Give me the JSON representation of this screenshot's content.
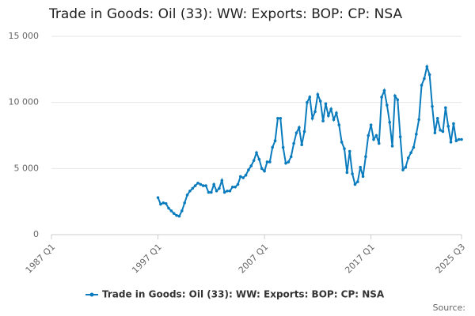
{
  "chart_data": {
    "type": "line",
    "title": "Trade in Goods: Oil (33): WW: Exports: BOP: CP: NSA",
    "source": "Source:",
    "categories": [
      "1987 Q1",
      null,
      null,
      null,
      null,
      null,
      null,
      null,
      null,
      null,
      null,
      null,
      null,
      null,
      null,
      null,
      null,
      null,
      null,
      null,
      null,
      null,
      null,
      null,
      null,
      null,
      null,
      null,
      null,
      null,
      null,
      null,
      null,
      null,
      null,
      null,
      null,
      null,
      null,
      null,
      "1997 Q1",
      null,
      null,
      null,
      null,
      null,
      null,
      null,
      null,
      null,
      null,
      null,
      null,
      null,
      null,
      null,
      null,
      null,
      null,
      null,
      null,
      null,
      null,
      null,
      null,
      null,
      null,
      null,
      null,
      null,
      null,
      null,
      null,
      null,
      null,
      null,
      null,
      null,
      null,
      null,
      "2007 Q1",
      null,
      null,
      null,
      null,
      null,
      null,
      null,
      null,
      null,
      null,
      null,
      null,
      null,
      null,
      null,
      null,
      null,
      null,
      null,
      null,
      null,
      null,
      null,
      null,
      null,
      null,
      null,
      null,
      null,
      null,
      null,
      null,
      null,
      null,
      null,
      null,
      null,
      null,
      null,
      "2017 Q1",
      null,
      null,
      null,
      null,
      null,
      null,
      null,
      null,
      null,
      null,
      null,
      null,
      null,
      null,
      null,
      null,
      null,
      null,
      null,
      null,
      null,
      null,
      null,
      null,
      null,
      null,
      null,
      null,
      null,
      null,
      null,
      null,
      null,
      "2025 Q3"
    ],
    "series": [
      {
        "name": "Trade in Goods: Oil (33): WW: Exports: BOP: CP: NSA",
        "color": "#0a7bbd",
        "values": [
          null,
          null,
          null,
          null,
          null,
          null,
          null,
          null,
          null,
          null,
          null,
          null,
          null,
          null,
          null,
          null,
          null,
          null,
          null,
          null,
          null,
          null,
          null,
          null,
          null,
          null,
          null,
          null,
          null,
          null,
          null,
          null,
          null,
          null,
          null,
          null,
          null,
          null,
          null,
          null,
          2800,
          2300,
          2400,
          2350,
          2000,
          1800,
          1600,
          1450,
          1400,
          1800,
          2400,
          3000,
          3300,
          3500,
          3700,
          3900,
          3800,
          3700,
          3700,
          3200,
          3200,
          3800,
          3300,
          3500,
          4100,
          3200,
          3300,
          3300,
          3600,
          3600,
          3800,
          4400,
          4300,
          4500,
          4900,
          5200,
          5600,
          6200,
          5700,
          5000,
          4800,
          5500,
          5500,
          6600,
          7100,
          8800,
          8800,
          6600,
          5400,
          5500,
          5900,
          6900,
          7700,
          8100,
          6800,
          7800,
          10000,
          10400,
          8800,
          9300,
          10600,
          10100,
          8600,
          9900,
          9000,
          9500,
          8700,
          9200,
          8300,
          7000,
          6500,
          4700,
          6300,
          4600,
          3800,
          4000,
          5100,
          4400,
          5900,
          7500,
          8300,
          7200,
          7500,
          6900,
          10400,
          10900,
          9800,
          8500,
          6700,
          10500,
          10200,
          7400,
          4900,
          5100,
          5800,
          6200,
          6600,
          7600,
          8700,
          11300,
          11800,
          12700,
          12100,
          9700,
          7700,
          8800,
          7900,
          7800,
          9600,
          8200,
          7000,
          8400,
          7100,
          7200,
          7200
        ]
      }
    ],
    "ylim": [
      0,
      15000
    ],
    "yticks": [
      0,
      {
        "value": 5000,
        "label": "5 000"
      },
      {
        "value": 10000,
        "label": "10 000"
      },
      {
        "value": 15000,
        "label": "15 000"
      }
    ],
    "grid": true
  }
}
